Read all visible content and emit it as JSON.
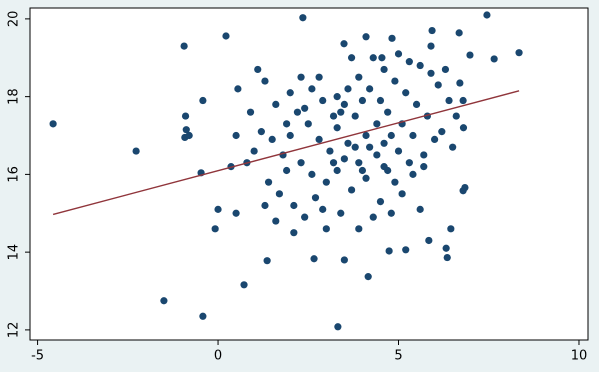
{
  "chart_data": {
    "type": "scatter",
    "x": [
      -4.57,
      -2.27,
      -1.5,
      -0.42,
      -0.94,
      0.22,
      2.35,
      7.45,
      8.34,
      7.65,
      3.32,
      4.16,
      0.72,
      1.36,
      6.79,
      6.84,
      -0.9,
      -0.88,
      -0.92,
      -0.8,
      -0.42,
      -0.47,
      -0.08,
      0,
      0.5,
      0.55,
      0.36,
      6.32,
      6.35,
      6.45,
      5.84,
      5.2,
      4.74,
      2.66,
      3.5,
      6.7,
      6.79,
      6.98,
      6.68,
      5.93,
      4.82,
      4.1,
      3.49,
      4.54,
      3.5,
      3.8,
      4.0,
      4.2,
      3.3,
      3.6,
      4.4,
      4.6,
      3.9,
      3.1,
      2.8,
      2.5,
      2.2,
      2.0,
      1.8,
      1.5,
      1.2,
      1.0,
      0.8,
      1.4,
      1.7,
      2.1,
      2.4,
      2.7,
      3.0,
      3.3,
      3.7,
      4.1,
      4.5,
      4.8,
      5.1,
      5.4,
      5.7,
      6.0,
      5.8,
      5.5,
      5.2,
      4.9,
      4.6,
      4.3,
      5.0,
      5.6,
      6.1,
      6.4,
      6.6,
      6.2,
      5.9,
      5.3,
      4.7,
      4.4,
      4.1,
      3.8,
      3.5,
      3.2,
      2.9,
      2.6,
      2.3,
      2.0,
      1.6,
      1.3,
      1.1,
      1.9,
      2.3,
      2.6,
      3.0,
      3.4,
      3.9,
      4.3,
      4.9,
      5.3,
      5.6,
      5.0,
      4.7,
      4.2,
      3.6,
      3.9,
      3.3,
      2.8,
      3.7,
      4.5,
      5.1,
      5.4,
      5.7,
      6.5,
      6.8,
      6.3,
      5.9,
      2.1,
      1.6,
      1.3,
      2.9,
      3.2,
      4.0,
      4.6,
      3.4,
      4.8,
      2.4,
      1.9,
      0.9,
      0.5
    ],
    "values": [
      17.3,
      16.6,
      12.75,
      12.35,
      19.3,
      19.56,
      20.03,
      20.1,
      19.13,
      18.97,
      12.08,
      13.37,
      13.16,
      13.78,
      15.58,
      15.66,
      17.5,
      17.15,
      16.95,
      17.0,
      17.9,
      16.04,
      14.6,
      15.1,
      15.0,
      18.2,
      16.2,
      14.1,
      13.86,
      14.6,
      14.3,
      14.06,
      14.03,
      13.83,
      13.8,
      18.35,
      17.9,
      19.07,
      19.64,
      19.7,
      19.5,
      19.54,
      19.36,
      19.0,
      17.8,
      17.5,
      17.9,
      18.2,
      17.2,
      16.8,
      16.5,
      16.8,
      16.3,
      16.6,
      16.9,
      17.3,
      17.6,
      17.0,
      16.5,
      16.9,
      17.1,
      16.6,
      16.3,
      15.8,
      15.5,
      15.2,
      14.9,
      15.4,
      15.8,
      16.1,
      15.6,
      15.9,
      15.3,
      15.0,
      15.5,
      16.0,
      16.5,
      16.9,
      17.5,
      17.8,
      18.1,
      18.4,
      18.7,
      19.0,
      19.1,
      18.8,
      18.3,
      17.9,
      17.5,
      17.1,
      18.6,
      18.9,
      17.6,
      17.3,
      17.0,
      16.7,
      16.4,
      17.5,
      17.9,
      18.2,
      18.5,
      18.1,
      17.8,
      18.4,
      18.7,
      16.1,
      16.3,
      16.0,
      14.6,
      15.0,
      14.6,
      14.9,
      15.8,
      16.3,
      15.1,
      16.6,
      16.1,
      16.7,
      18.2,
      18.5,
      18.0,
      18.5,
      19.0,
      17.9,
      17.3,
      17.0,
      16.2,
      16.7,
      17.2,
      18.7,
      19.3,
      14.5,
      14.8,
      15.2,
      15.1,
      16.3,
      16.1,
      16.2,
      17.6,
      17.0,
      17.7,
      17.3,
      17.6,
      17.0
    ],
    "color": "#1a476f",
    "fit_line": {
      "x": [
        -4.57,
        8.34
      ],
      "y": [
        14.97,
        18.15
      ],
      "color": "#90353b"
    },
    "xlim": [
      -5.21,
      10.25
    ],
    "ylim": [
      11.74,
      20.28
    ],
    "xticks": [
      -5,
      0,
      5,
      10
    ],
    "yticks": [
      12,
      14,
      16,
      18,
      20
    ],
    "grid": false
  }
}
